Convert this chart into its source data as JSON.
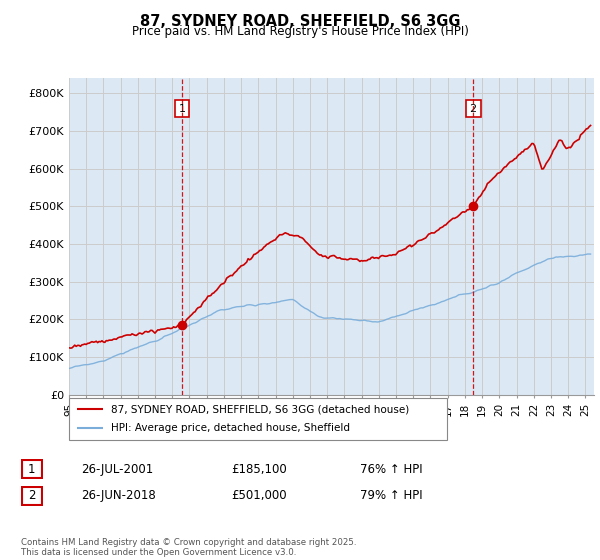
{
  "title": "87, SYDNEY ROAD, SHEFFIELD, S6 3GG",
  "subtitle": "Price paid vs. HM Land Registry's House Price Index (HPI)",
  "ylabel_ticks": [
    "£0",
    "£100K",
    "£200K",
    "£300K",
    "£400K",
    "£500K",
    "£600K",
    "£700K",
    "£800K"
  ],
  "ylim": [
    0,
    840000
  ],
  "xlim_start": 1995.0,
  "xlim_end": 2025.5,
  "sale1_date": 2001.57,
  "sale1_price": 185100,
  "sale1_label": "1",
  "sale1_hpi_pct": "76% ↑ HPI",
  "sale1_date_str": "26-JUL-2001",
  "sale1_price_str": "£185,100",
  "sale2_date": 2018.48,
  "sale2_price": 501000,
  "sale2_label": "2",
  "sale2_hpi_pct": "79% ↑ HPI",
  "sale2_date_str": "26-JUN-2018",
  "sale2_price_str": "£501,000",
  "red_line_color": "#cc0000",
  "blue_line_color": "#7aadda",
  "vline_color": "#cc0000",
  "grid_color": "#cccccc",
  "chart_bg_color": "#dce9f5",
  "background_color": "#ffffff",
  "legend_label_red": "87, SYDNEY ROAD, SHEFFIELD, S6 3GG (detached house)",
  "legend_label_blue": "HPI: Average price, detached house, Sheffield",
  "footer": "Contains HM Land Registry data © Crown copyright and database right 2025.\nThis data is licensed under the Open Government Licence v3.0."
}
